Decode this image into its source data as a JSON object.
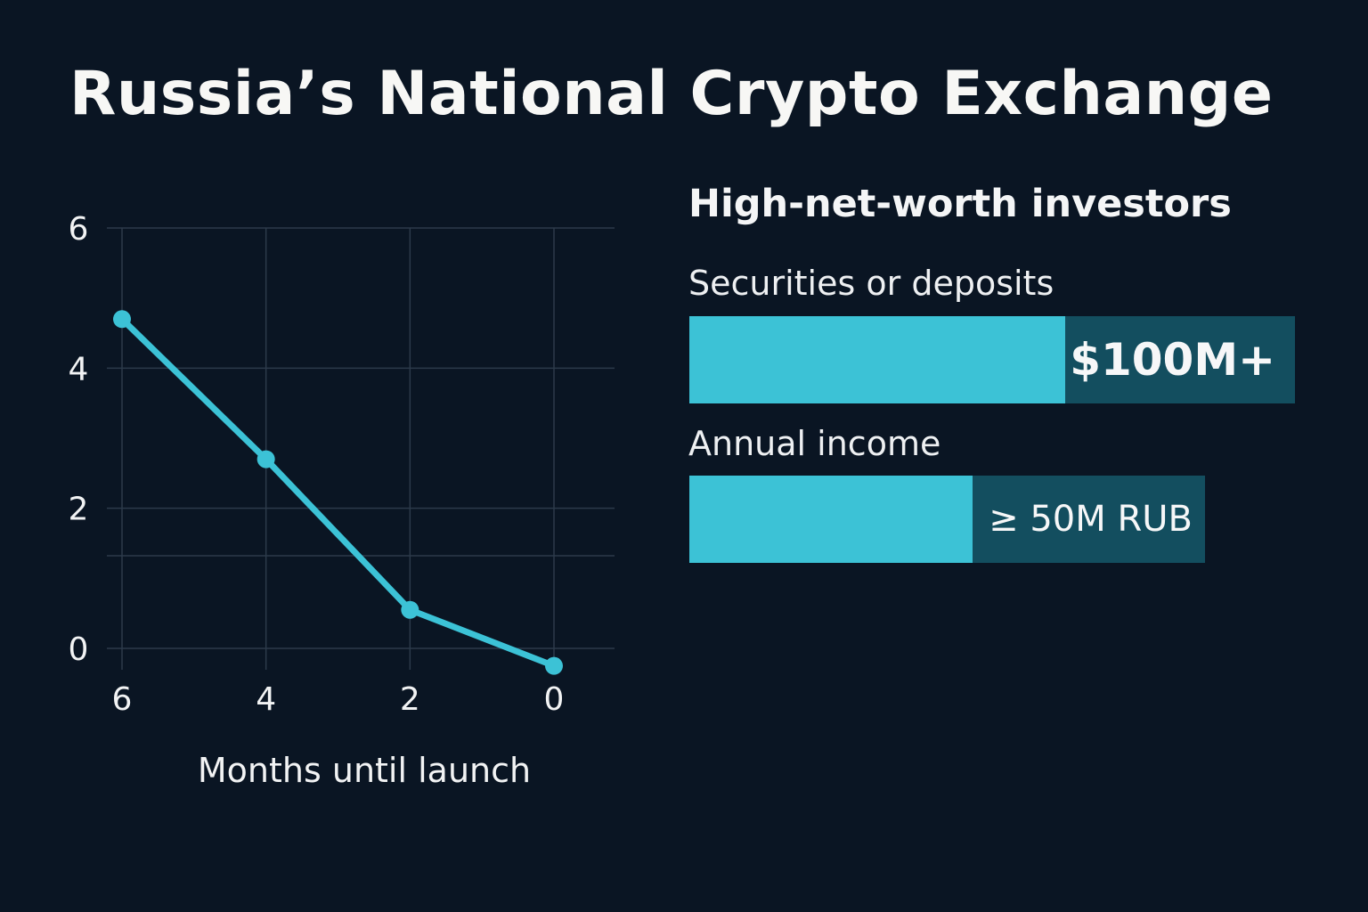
{
  "title": "Russia’s National Crypto Exchange",
  "chart_data": [
    {
      "type": "line",
      "x": [
        6,
        4,
        2,
        0
      ],
      "series": [
        {
          "values": [
            4.7,
            2.7,
            0.55,
            -0.25
          ]
        }
      ],
      "xticks": [
        "6",
        "4",
        "2",
        "0"
      ],
      "yticks": [
        "0",
        "2",
        "4",
        "6"
      ],
      "xlabel": "Months until launch",
      "ylabel": "",
      "xlim": [
        6,
        0
      ],
      "ylim": [
        -1.6,
        6
      ],
      "grid": true,
      "line_color": "#3cc2d6"
    },
    {
      "type": "bar",
      "title": "High-net-worth investors",
      "categories": [
        "Securities or deposits",
        "Annual income"
      ],
      "value_labels": [
        "$100M+",
        "≥ 50M RUB"
      ],
      "fill_fraction": [
        0.62,
        0.55
      ]
    }
  ],
  "colors": {
    "background": "#0a1523",
    "accent": "#3cc2d6",
    "bar_track": "#134e5f",
    "grid": "#2c3a4a"
  }
}
